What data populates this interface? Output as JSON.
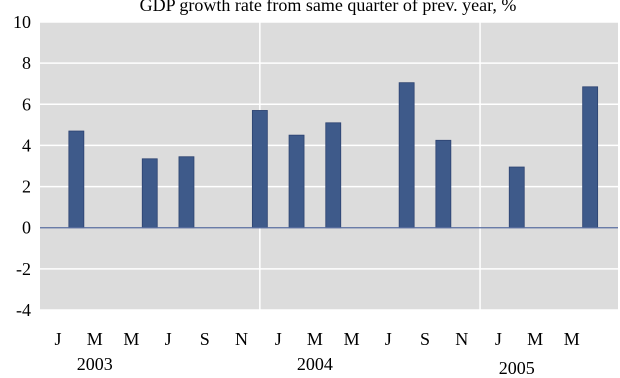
{
  "chart_data": {
    "type": "bar",
    "title": "GDP growth rate from same quarter of prev. year, %",
    "xlabel": "",
    "ylabel": "",
    "ylim": [
      -4,
      10
    ],
    "yticks": [
      -4,
      -2,
      0,
      2,
      4,
      6,
      8,
      10
    ],
    "grid": true,
    "legend": "none",
    "month_labels": [
      "J",
      "M",
      "M",
      "J",
      "S",
      "N",
      "J",
      "M",
      "M",
      "J",
      "S",
      "N",
      "J",
      "M",
      "M"
    ],
    "year_labels": [
      {
        "label": "2003",
        "month_index": 1
      },
      {
        "label": "2004",
        "month_index": 7
      },
      {
        "label": "2005",
        "month_index": 12.5
      }
    ],
    "series": [
      {
        "values": [
          4.7,
          3.35,
          3.45,
          5.7,
          4.5,
          5.1,
          7.05,
          4.25,
          2.95,
          6.85
        ],
        "month_positions": [
          0.5,
          2.5,
          3.5,
          5.5,
          6.5,
          7.5,
          9.5,
          10.5,
          12.5,
          14.5
        ]
      }
    ],
    "colors": {
      "bar": "#3e5a8a",
      "plot_background": "#dcdcdc",
      "gridline": "#ffffff",
      "zero_line": "#5a6fa0"
    }
  }
}
